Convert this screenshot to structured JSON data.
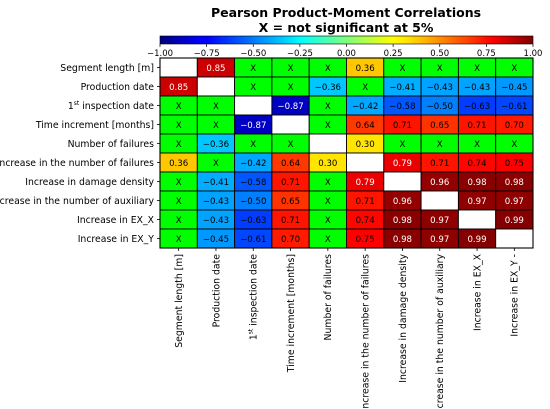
{
  "chart_data": {
    "type": "heatmap",
    "title": "Pearson Product-Moment Correlations",
    "subtitle": "X = not significant at 5%",
    "colorbar": {
      "range": [
        -1.0,
        1.0
      ],
      "ticks": [
        "−1.00",
        "−0.75",
        "−0.50",
        "−0.25",
        "0.00",
        "0.25",
        "0.50",
        "0.75",
        "1.00"
      ],
      "colormap": "jet"
    },
    "labels": [
      {
        "pre": "Segment length [m]"
      },
      {
        "pre": "Production date"
      },
      {
        "pre": "1",
        "sup": "st",
        "post": " inspection date"
      },
      {
        "pre": "Time increment [months]"
      },
      {
        "pre": "Number of failures"
      },
      {
        "pre": "Increase in the number of failures"
      },
      {
        "pre": "Increase in damage density"
      },
      {
        "pre": "Increase in the number of auxiliary"
      },
      {
        "pre": "Increase in EX_X"
      },
      {
        "pre": "Increase in EX_Y"
      }
    ],
    "x_labels_right": [
      {
        "pre": "Segment length [m]"
      },
      {
        "pre": "Production date"
      },
      {
        "pre": "1",
        "sup": "st",
        "post": " inspection date"
      },
      {
        "pre": "Time increment [months]"
      },
      {
        "pre": "Number of failures"
      },
      {
        "pre": "Increase in the number of failures"
      },
      {
        "pre": "Increase in damage density"
      },
      {
        "pre": "Increase in the number of auxiliary"
      },
      {
        "pre": "Increase in EX_X"
      },
      {
        "pre": "Increase in EX_Y -"
      }
    ],
    "cells": [
      [
        null,
        "0.85",
        "X",
        "X",
        "X",
        "0.36",
        "X",
        "X",
        "X",
        "X"
      ],
      [
        "0.85",
        null,
        "X",
        "X",
        "−0.36",
        "X",
        "−0.41",
        "−0.43",
        "−0.43",
        "−0.45"
      ],
      [
        "X",
        "X",
        null,
        "−0.87",
        "X",
        "−0.42",
        "−0.58",
        "−0.50",
        "−0.63",
        "−0.61"
      ],
      [
        "X",
        "X",
        "−0.87",
        null,
        "X",
        "0.64",
        "0.71",
        "0.65",
        "0.71",
        "0.70"
      ],
      [
        "X",
        "−0.36",
        "X",
        "X",
        null,
        "0.30",
        "X",
        "X",
        "X",
        "X"
      ],
      [
        "0.36",
        "X",
        "−0.42",
        "0.64",
        "0.30",
        null,
        "0.79",
        "0.71",
        "0.74",
        "0.75"
      ],
      [
        "X",
        "−0.41",
        "−0.58",
        "0.71",
        "X",
        "0.79",
        null,
        "0.96",
        "0.98",
        "0.98"
      ],
      [
        "X",
        "−0.43",
        "−0.50",
        "0.65",
        "X",
        "0.71",
        "0.96",
        null,
        "0.97",
        "0.97"
      ],
      [
        "X",
        "−0.43",
        "−0.63",
        "0.71",
        "X",
        "0.74",
        "0.98",
        "0.97",
        null,
        "0.99"
      ],
      [
        "X",
        "−0.45",
        "−0.61",
        "0.70",
        "X",
        "0.75",
        "0.98",
        "0.97",
        "0.99",
        null
      ]
    ],
    "values": [
      [
        1,
        0.85,
        0.02,
        0.02,
        0.02,
        0.36,
        0.02,
        0.02,
        0.02,
        0.02
      ],
      [
        0.85,
        1,
        0.02,
        0.02,
        -0.36,
        0.02,
        -0.41,
        -0.43,
        -0.43,
        -0.45
      ],
      [
        0.02,
        0.02,
        1,
        -0.87,
        0.02,
        -0.42,
        -0.58,
        -0.5,
        -0.63,
        -0.61
      ],
      [
        0.02,
        0.02,
        -0.87,
        1,
        0.02,
        0.64,
        0.71,
        0.65,
        0.71,
        0.7
      ],
      [
        0.02,
        -0.36,
        0.02,
        0.02,
        1,
        0.3,
        0.02,
        0.02,
        0.02,
        0.02
      ],
      [
        0.36,
        0.02,
        -0.42,
        0.64,
        0.3,
        1,
        0.79,
        0.71,
        0.74,
        0.75
      ],
      [
        0.02,
        -0.41,
        -0.58,
        0.71,
        0.02,
        0.79,
        1,
        0.96,
        0.98,
        0.98
      ],
      [
        0.02,
        -0.43,
        -0.5,
        0.65,
        0.02,
        0.71,
        0.96,
        1,
        0.97,
        0.97
      ],
      [
        0.02,
        -0.43,
        -0.63,
        0.71,
        0.02,
        0.74,
        0.98,
        0.97,
        1,
        0.99
      ],
      [
        0.02,
        -0.45,
        -0.61,
        0.7,
        0.02,
        0.75,
        0.98,
        0.97,
        0.99,
        1
      ]
    ],
    "diagonal_color": "#ffffff",
    "not_significant_color": "#00ff00",
    "grid_color": "#000000"
  }
}
